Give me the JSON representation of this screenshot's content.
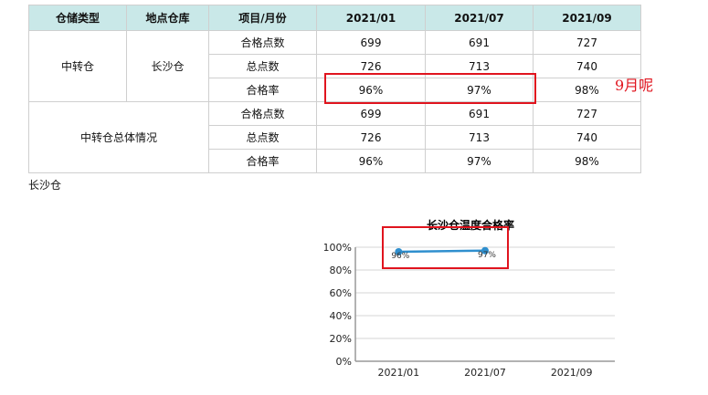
{
  "table": {
    "headers": [
      "仓储类型",
      "地点仓库",
      "项目/月份",
      "2021/01",
      "2021/07",
      "2021/09"
    ],
    "group1": {
      "type": "中转仓",
      "warehouse": "长沙仓",
      "rows": [
        {
          "item": "合格点数",
          "values": [
            "699",
            "691",
            "727"
          ]
        },
        {
          "item": "总点数",
          "values": [
            "726",
            "713",
            "740"
          ]
        },
        {
          "item": "合格率",
          "values": [
            "96%",
            "97%",
            "98%"
          ]
        }
      ]
    },
    "group2": {
      "label": "中转仓总体情况",
      "rows": [
        {
          "item": "合格点数",
          "values": [
            "699",
            "691",
            "727"
          ]
        },
        {
          "item": "总点数",
          "values": [
            "726",
            "713",
            "740"
          ]
        },
        {
          "item": "合格率",
          "values": [
            "96%",
            "97%",
            "98%"
          ]
        }
      ]
    }
  },
  "below_table_label": "长沙仓",
  "annotation": {
    "text": "9月呢",
    "color": "#e0141e"
  },
  "chart_data": {
    "type": "line",
    "title": "长沙仓温度合格率",
    "categories": [
      "2021/01",
      "2021/07",
      "2021/09"
    ],
    "values": [
      0.96,
      0.97,
      null
    ],
    "data_labels": [
      "96%",
      "97%",
      ""
    ],
    "y_ticks": [
      "0%",
      "20%",
      "40%",
      "60%",
      "80%",
      "100%"
    ],
    "ylim": [
      0,
      1
    ],
    "grid": true,
    "line_color": "#2f8fce"
  }
}
